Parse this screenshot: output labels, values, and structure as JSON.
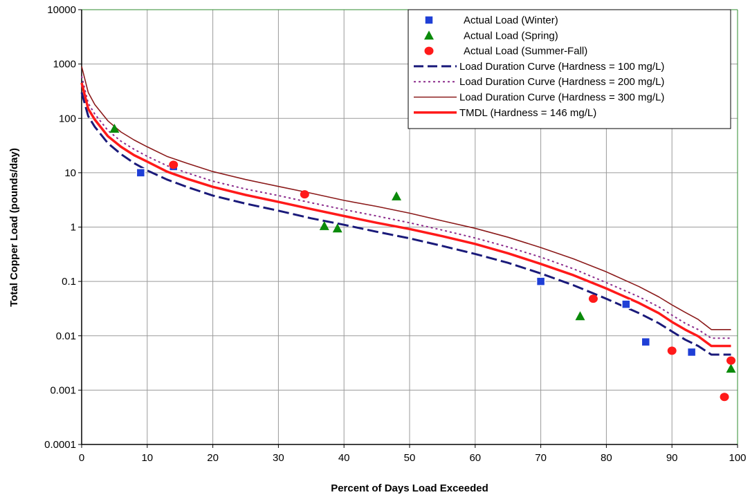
{
  "chart_data": {
    "type": "line",
    "title": "",
    "xlabel": "Percent of Days Load Exceeded",
    "ylabel": "Total Copper Load (pounds/day)",
    "xlim": [
      0,
      100
    ],
    "ylim": [
      0.0001,
      10000
    ],
    "yscale": "log",
    "grid": true,
    "legend_position": "top-right",
    "x_ticks": [
      "0",
      "10",
      "20",
      "30",
      "40",
      "50",
      "60",
      "70",
      "80",
      "90",
      "100"
    ],
    "y_ticks": [
      "0.0001",
      "0.001",
      "0.01",
      "0.1",
      "1",
      "10",
      "100",
      "1000",
      "10000"
    ],
    "colors": {
      "winter": "#1f3fd6",
      "spring": "#0a8a0a",
      "summer_fall": "#ff1a1a",
      "ldc100": "#1a1a7a",
      "ldc200": "#8b2a8b",
      "ldc300": "#8b1a1a",
      "tmdl": "#ff1a1a",
      "grid": "#9a9a9a",
      "frame": "#2e8b2e"
    },
    "points": [
      {
        "name": "Actual Load (Winter)",
        "marker": "square",
        "color_key": "winter",
        "x": [
          9,
          14,
          70,
          83,
          86,
          93
        ],
        "y": [
          10,
          13,
          0.1,
          0.038,
          0.0077,
          0.005
        ]
      },
      {
        "name": "Actual Load (Spring)",
        "marker": "triangle",
        "color_key": "spring",
        "x": [
          5,
          37,
          39,
          48,
          76,
          99
        ],
        "y": [
          65,
          1.05,
          0.95,
          3.7,
          0.023,
          0.0025
        ]
      },
      {
        "name": "Actual Load (Summer-Fall)",
        "marker": "circle",
        "color_key": "summer_fall",
        "x": [
          14,
          34,
          78,
          90,
          98,
          99
        ],
        "y": [
          14,
          4,
          0.048,
          0.0053,
          0.00075,
          0.0035
        ]
      }
    ],
    "curves": [
      {
        "name": "Load Duration Curve (Hardness = 100 mg/L)",
        "style": "dashed",
        "color_key": "ldc100",
        "width": 3,
        "x": [
          0,
          1,
          2,
          4,
          6,
          8,
          10,
          13,
          16,
          20,
          25,
          30,
          35,
          40,
          45,
          50,
          55,
          60,
          65,
          70,
          75,
          80,
          85,
          88,
          90,
          92,
          94,
          96,
          99
        ],
        "y": [
          300,
          110,
          70,
          35,
          22,
          15,
          11,
          7.5,
          5.5,
          3.8,
          2.7,
          2,
          1.45,
          1.1,
          0.82,
          0.62,
          0.45,
          0.32,
          0.22,
          0.14,
          0.085,
          0.048,
          0.026,
          0.017,
          0.012,
          0.0085,
          0.0065,
          0.0045,
          0.0045
        ]
      },
      {
        "name": "Load Duration Curve (Hardness = 200 mg/L)",
        "style": "dotted",
        "color_key": "ldc200",
        "width": 2,
        "x": [
          0,
          1,
          2,
          4,
          6,
          8,
          10,
          13,
          16,
          20,
          25,
          30,
          35,
          40,
          45,
          50,
          55,
          60,
          65,
          70,
          75,
          80,
          85,
          88,
          90,
          92,
          94,
          96,
          99
        ],
        "y": [
          600,
          190,
          120,
          60,
          38,
          27,
          20,
          13.5,
          10,
          7,
          5,
          3.8,
          2.8,
          2.1,
          1.6,
          1.2,
          0.88,
          0.63,
          0.43,
          0.28,
          0.17,
          0.095,
          0.052,
          0.034,
          0.024,
          0.017,
          0.013,
          0.009,
          0.009
        ]
      },
      {
        "name": "Load Duration Curve (Hardness = 300 mg/L)",
        "style": "solid",
        "color_key": "ldc300",
        "width": 1.6,
        "x": [
          0,
          1,
          2,
          4,
          6,
          8,
          10,
          13,
          16,
          20,
          25,
          30,
          35,
          40,
          45,
          50,
          55,
          60,
          65,
          70,
          75,
          80,
          85,
          88,
          90,
          92,
          94,
          96,
          99
        ],
        "y": [
          900,
          300,
          180,
          90,
          56,
          40,
          30,
          20,
          15,
          10.5,
          7.5,
          5.6,
          4.2,
          3.1,
          2.4,
          1.8,
          1.3,
          0.95,
          0.65,
          0.42,
          0.26,
          0.15,
          0.08,
          0.052,
          0.037,
          0.027,
          0.02,
          0.013,
          0.013
        ]
      },
      {
        "name": "TMDL (Hardness = 146 mg/L)",
        "style": "solid",
        "color_key": "tmdl",
        "width": 3.5,
        "x": [
          0,
          1,
          2,
          4,
          6,
          8,
          10,
          13,
          16,
          20,
          25,
          30,
          35,
          40,
          45,
          50,
          55,
          60,
          65,
          70,
          75,
          80,
          85,
          88,
          90,
          92,
          94,
          96,
          99
        ],
        "y": [
          450,
          150,
          95,
          47,
          30,
          21,
          16,
          10.5,
          7.8,
          5.5,
          3.9,
          2.9,
          2.15,
          1.6,
          1.2,
          0.92,
          0.68,
          0.49,
          0.33,
          0.21,
          0.13,
          0.074,
          0.04,
          0.026,
          0.018,
          0.013,
          0.0098,
          0.0065,
          0.0065
        ]
      }
    ],
    "legend": [
      {
        "label": "Actual Load (Winter)",
        "kind": "square",
        "color_key": "winter"
      },
      {
        "label": "Actual Load (Spring)",
        "kind": "triangle",
        "color_key": "spring"
      },
      {
        "label": "Actual Load (Summer-Fall)",
        "kind": "circle",
        "color_key": "summer_fall"
      },
      {
        "label": "Load Duration Curve (Hardness = 100 mg/L)",
        "kind": "dashed",
        "color_key": "ldc100"
      },
      {
        "label": "Load Duration Curve (Hardness = 200 mg/L)",
        "kind": "dotted",
        "color_key": "ldc200"
      },
      {
        "label": "Load Duration Curve (Hardness = 300 mg/L)",
        "kind": "solid-thin",
        "color_key": "ldc300"
      },
      {
        "label": "TMDL (Hardness = 146 mg/L)",
        "kind": "solid-thick",
        "color_key": "tmdl"
      }
    ]
  }
}
